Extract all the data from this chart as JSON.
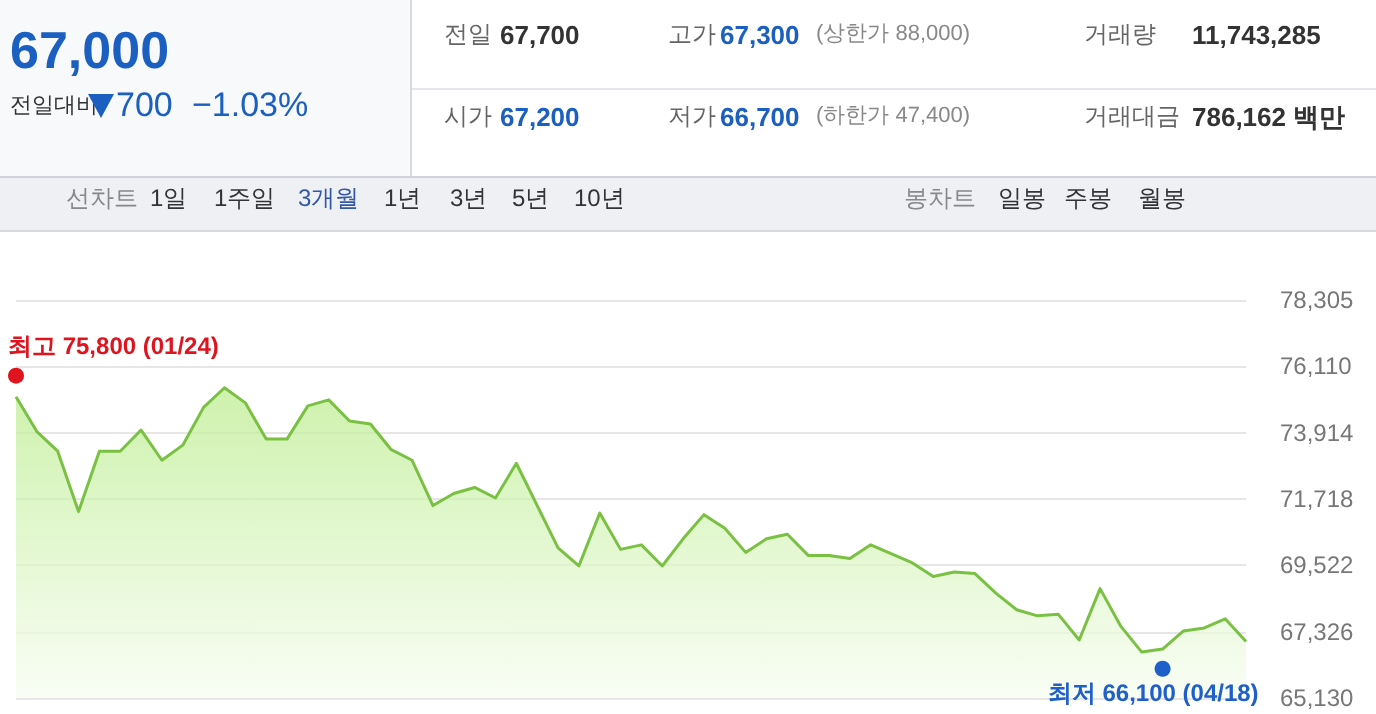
{
  "chart_data": {
    "type": "area",
    "grid": "y",
    "tick_labels": "y",
    "categories": [
      null,
      null,
      null,
      null,
      null,
      null,
      null,
      null,
      null,
      null,
      null,
      null,
      null,
      null,
      null,
      null,
      null,
      null,
      null,
      null,
      null,
      null,
      null,
      null,
      null,
      null,
      null,
      null,
      null,
      null,
      null,
      null,
      null,
      null,
      null,
      null,
      null,
      null,
      null,
      null,
      null,
      null,
      null,
      null,
      null,
      null,
      null,
      null,
      null,
      null,
      null,
      null,
      null,
      null,
      null,
      null,
      null,
      null,
      null,
      null
    ],
    "series": [
      {
        "color": "#7ac143",
        "marker": "none",
        "values": [
          75100,
          73950,
          73300,
          71300,
          73300,
          73300,
          74000,
          73000,
          73500,
          74750,
          75400,
          74900,
          73700,
          73700,
          74800,
          75000,
          74300,
          74200,
          73350,
          73000,
          71500,
          71900,
          72100,
          71750,
          72900,
          71500,
          70100,
          69500,
          71250,
          70050,
          70200,
          69500,
          70400,
          71200,
          70750,
          69950,
          70400,
          70550,
          69850,
          69850,
          69750,
          70200,
          69900,
          69600,
          69150,
          69300,
          69250,
          68600,
          68050,
          67850,
          67900,
          67050,
          68750,
          67500,
          66650,
          66750,
          67350,
          67450,
          67750,
          67000
        ]
      },
      {
        "type": "scatter",
        "marker": "circle",
        "values": [
          75800,
          null,
          null,
          null,
          null,
          null,
          null,
          null,
          null,
          null,
          null,
          null,
          null,
          null,
          null,
          null,
          null,
          null,
          null,
          null,
          null,
          null,
          null,
          null,
          null,
          null,
          null,
          null,
          null,
          null,
          null,
          null,
          null,
          null,
          null,
          null,
          null,
          null,
          null,
          null,
          null,
          null,
          null,
          null,
          null,
          null,
          null,
          null,
          null,
          null,
          null,
          null,
          null,
          null,
          null,
          66100,
          null,
          null,
          null,
          null
        ],
        "colors": [
          "#e0141e",
          null,
          null,
          null,
          null,
          null,
          null,
          null,
          null,
          null,
          null,
          null,
          null,
          null,
          null,
          null,
          null,
          null,
          null,
          null,
          null,
          null,
          null,
          null,
          null,
          null,
          null,
          null,
          null,
          null,
          null,
          null,
          null,
          null,
          null,
          null,
          null,
          null,
          null,
          null,
          null,
          null,
          null,
          null,
          null,
          null,
          null,
          null,
          null,
          null,
          null,
          null,
          null,
          null,
          null,
          "#1f5fc9",
          null,
          null,
          null,
          null
        ],
        "value_labels": [
          "최고 75,800 (01/24)",
          null,
          null,
          null,
          null,
          null,
          null,
          null,
          null,
          null,
          null,
          null,
          null,
          null,
          null,
          null,
          null,
          null,
          null,
          null,
          null,
          null,
          null,
          null,
          null,
          null,
          null,
          null,
          null,
          null,
          null,
          null,
          null,
          null,
          null,
          null,
          null,
          null,
          null,
          null,
          null,
          null,
          null,
          null,
          null,
          null,
          null,
          null,
          null,
          null,
          null,
          null,
          null,
          null,
          null,
          "최저 66,100 (04/18)",
          null,
          null,
          null,
          null
        ]
      }
    ],
    "ylim": [
      65130,
      78305
    ],
    "yticks": [
      {
        "value": 65130,
        "label": "65,130"
      },
      {
        "value": 67326,
        "label": "67,326"
      },
      {
        "value": 69522,
        "label": "69,522"
      },
      {
        "value": 71718,
        "label": "71,718"
      },
      {
        "value": 73914,
        "label": "73,914"
      },
      {
        "value": 76110,
        "label": "76,110"
      },
      {
        "value": 78305,
        "label": "78,305"
      }
    ],
    "annotations": [
      "67,000",
      "전일대비",
      "700",
      "−1.03%",
      "전일",
      "67,700",
      "고가",
      "67,300",
      "(상한가 88,000)",
      "거래량",
      "11,743,285",
      "시가",
      "67,200",
      "저가",
      "66,700",
      "(하한가 47,400)",
      "거래대금",
      "786,162 백만",
      "선차트",
      "1일",
      "1주일",
      "3개월",
      "1년",
      "3년",
      "5년",
      "10년",
      "봉차트",
      "일봉",
      "주봉",
      "월봉"
    ]
  }
}
